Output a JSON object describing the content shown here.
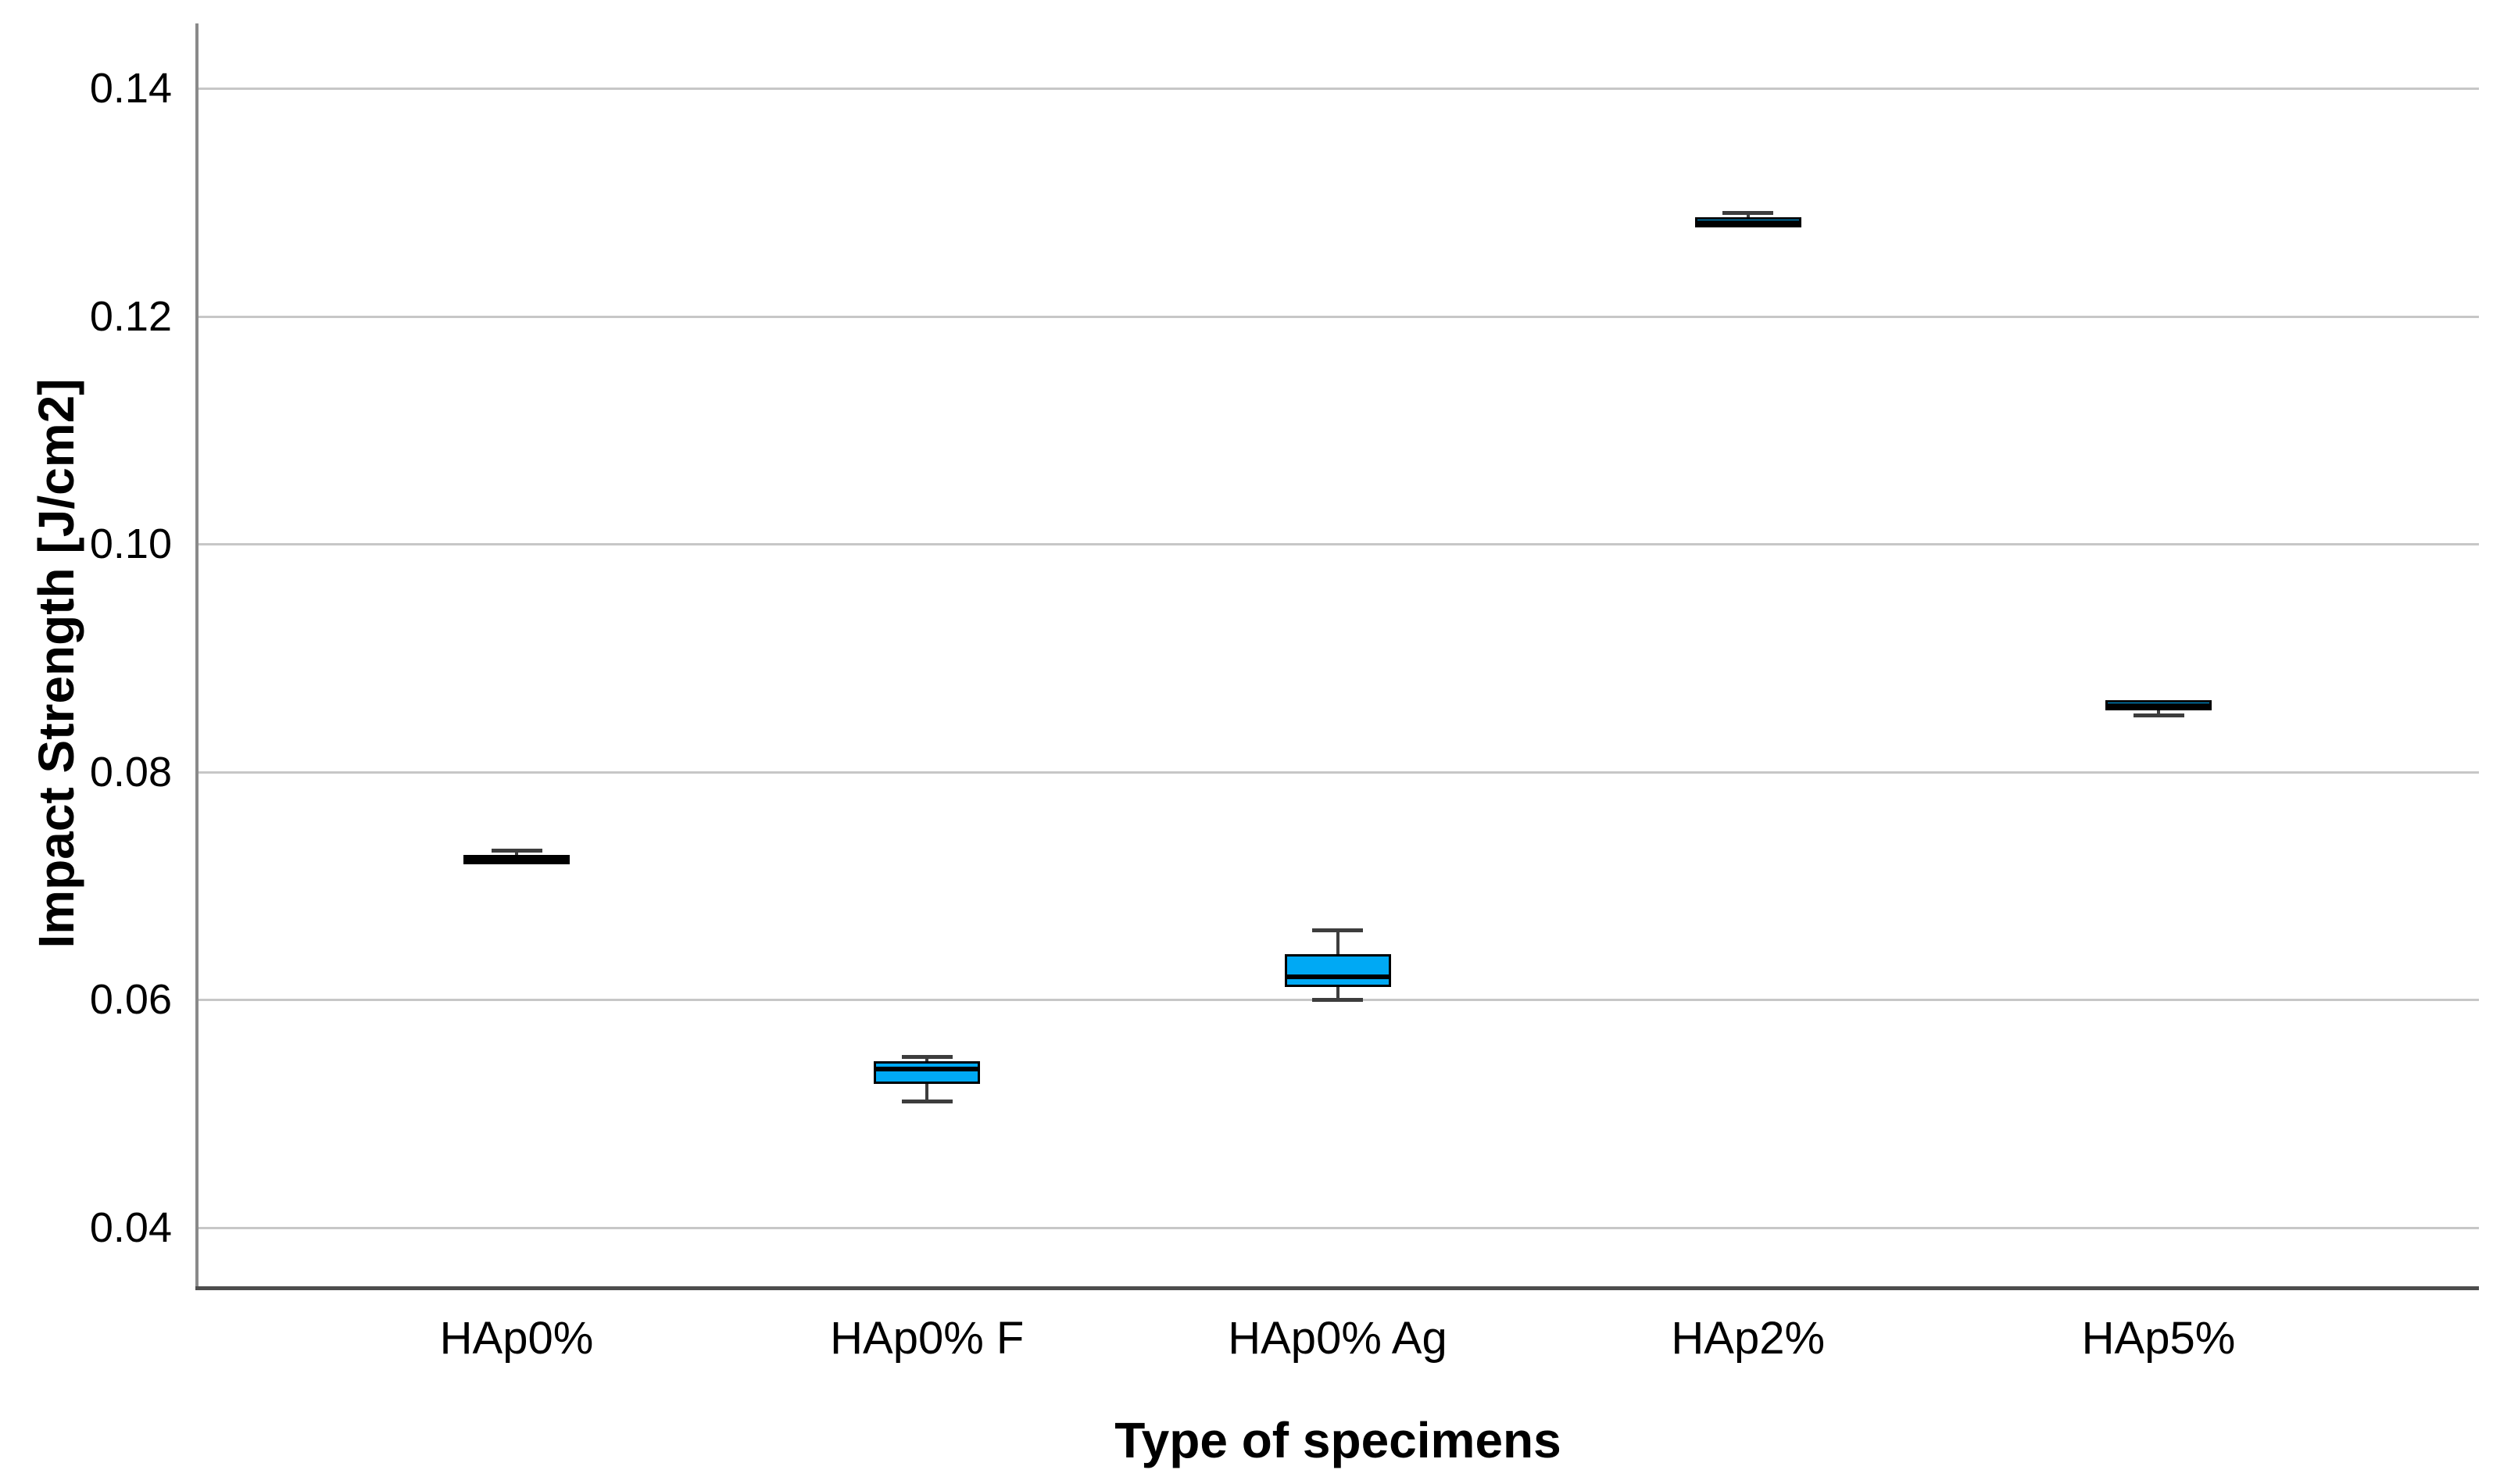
{
  "chart_data": {
    "type": "boxplot",
    "title": "",
    "xlabel": "Type of specimens",
    "ylabel": "Impact Strength [J/cm2]",
    "categories": [
      "HAp0%",
      "HAp0% F",
      "HAp0% Ag",
      "HAp2%",
      "HAp5%"
    ],
    "series": [
      {
        "name": "HAp0%",
        "whisker_low": null,
        "q1": 0.0719,
        "median": 0.0723,
        "q3": 0.0727,
        "whisker_high": 0.0731
      },
      {
        "name": "HAp0% F",
        "whisker_low": 0.0511,
        "q1": 0.0526,
        "median": 0.0539,
        "q3": 0.0546,
        "whisker_high": 0.055
      },
      {
        "name": "HAp0% Ag",
        "whisker_low": 0.06,
        "q1": 0.0611,
        "median": 0.062,
        "q3": 0.064,
        "whisker_high": 0.0661
      },
      {
        "name": "HAp2%",
        "whisker_low": null,
        "q1": 0.1278,
        "median": 0.1282,
        "q3": 0.1287,
        "whisker_high": 0.1291
      },
      {
        "name": "HAp5%",
        "whisker_low": 0.085,
        "q1": 0.0854,
        "median": 0.0858,
        "q3": 0.0863,
        "whisker_high": null
      }
    ],
    "yticks": {
      "values": [
        0.04,
        0.06,
        0.08,
        0.1,
        0.12,
        0.14
      ],
      "labels": [
        "0.04",
        "0.06",
        "0.08",
        "0.10",
        "0.12",
        "0.14"
      ]
    },
    "ylim": [
      0.0347,
      0.1457
    ],
    "grid": true,
    "legend": false,
    "colors": {
      "box_fill": "#00A9F4",
      "box_border": "#000000",
      "median": "#000000",
      "whisker": "#3d3d3d",
      "gridline": "#c7c7c7",
      "y_axis": "#8a8a8a",
      "x_axis": "#4d4d4d",
      "text": "#000000",
      "background": "#ffffff"
    }
  }
}
